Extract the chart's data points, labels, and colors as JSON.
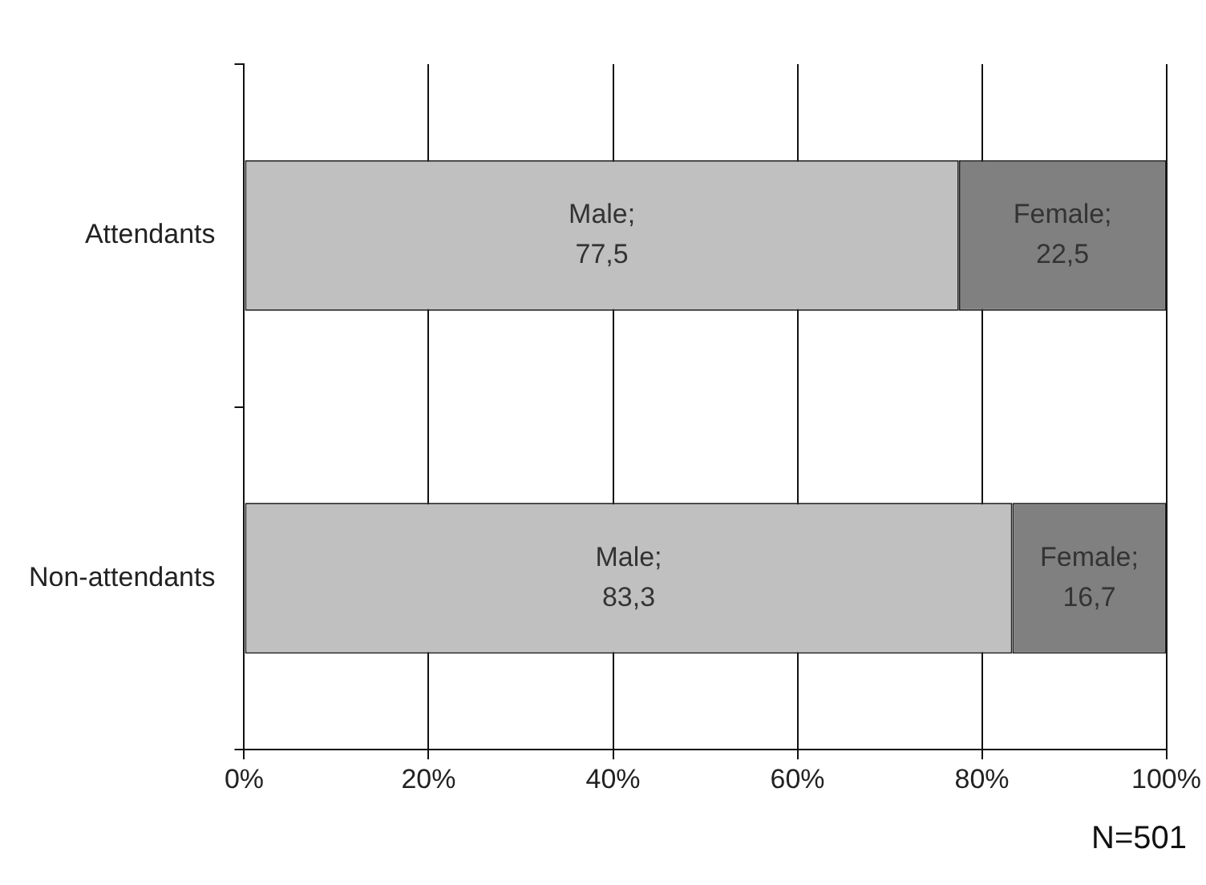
{
  "chart_data": {
    "type": "bar",
    "orientation": "horizontal",
    "stacked": true,
    "categories": [
      "Attendants",
      "Non-attendants"
    ],
    "series": [
      {
        "color": "#c0c0c0",
        "values": [
          77.5,
          83.3
        ],
        "value_labels": [
          "Male;\n77,5",
          "Male;\n83,3"
        ]
      },
      {
        "color": "#808080",
        "values": [
          22.5,
          16.7
        ],
        "value_labels": [
          "Female;\n22,5",
          "Female;\n16,7"
        ]
      }
    ],
    "xlim": [
      0,
      100
    ],
    "xticks": [
      {
        "value": 0,
        "label": "0%"
      },
      {
        "value": 20,
        "label": "20%"
      },
      {
        "value": 40,
        "label": "40%"
      },
      {
        "value": 60,
        "label": "60%"
      },
      {
        "value": 80,
        "label": "80%"
      },
      {
        "value": 100,
        "label": "100%"
      }
    ],
    "grid": "x",
    "legend": false,
    "annotations": [
      "N=501"
    ]
  }
}
